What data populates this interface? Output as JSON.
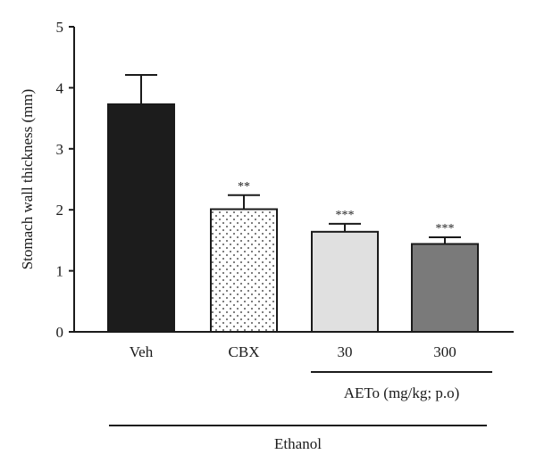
{
  "chart_data": {
    "type": "bar",
    "title": "",
    "xlabel": "",
    "ylabel": "Stomach wall thickness (mm)",
    "ylim": [
      0,
      5
    ],
    "yticks": [
      0,
      1,
      2,
      3,
      4,
      5
    ],
    "grid": false,
    "categories": [
      "Veh",
      "CBX",
      "30",
      "300"
    ],
    "values": [
      3.73,
      2.01,
      1.64,
      1.44
    ],
    "errors": [
      0.48,
      0.23,
      0.13,
      0.11
    ],
    "significance": [
      "",
      "**",
      "***",
      "***"
    ],
    "bar_fills": [
      "solid",
      "dotted",
      "solid",
      "solid"
    ],
    "bar_colors": [
      "#1c1c1c",
      "#ffffff",
      "#e0e0e0",
      "#7a7a7a"
    ],
    "groups": [
      {
        "label": "AETo (mg/kg; p.o)",
        "categories": [
          "30",
          "300"
        ]
      },
      {
        "label": "Ethanol",
        "categories": [
          "Veh",
          "CBX",
          "30",
          "300"
        ]
      }
    ]
  }
}
